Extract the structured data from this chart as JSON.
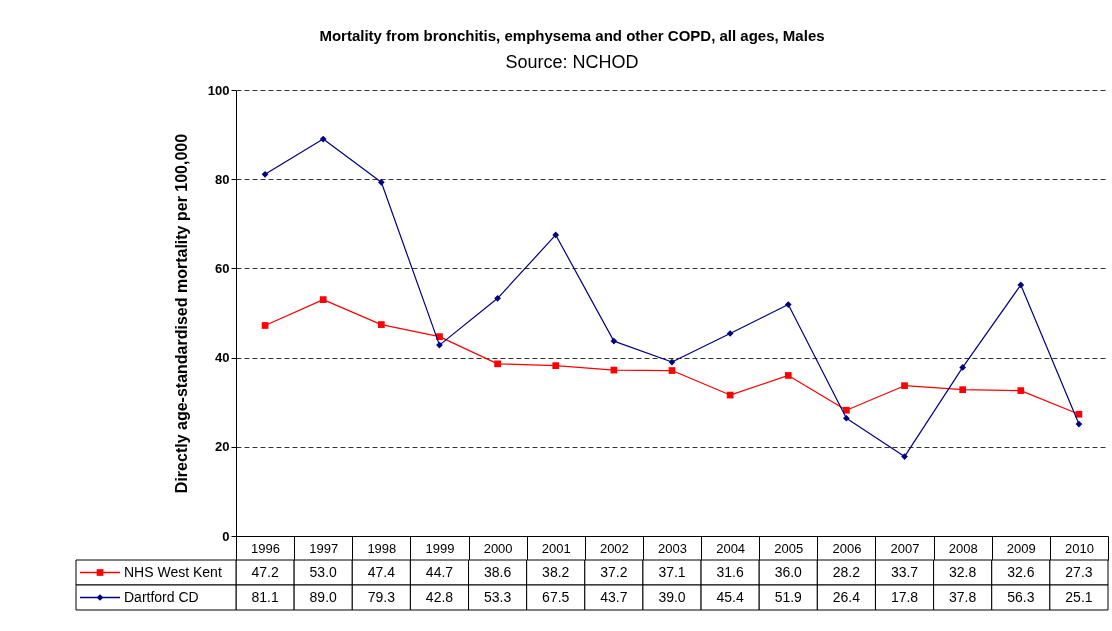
{
  "chart_data": {
    "type": "line",
    "title": "Mortality from bronchitis, emphysema and other COPD, all ages, Males",
    "subtitle": "Source: NCHOD",
    "ylabel": "Directly age-standardised mortality per 100,000",
    "categories": [
      "1996",
      "1997",
      "1998",
      "1999",
      "2000",
      "2001",
      "2002",
      "2003",
      "2004",
      "2005",
      "2006",
      "2007",
      "2008",
      "2009",
      "2010"
    ],
    "series": [
      {
        "name": "NHS West Kent",
        "color": "#ff0000",
        "marker": "square",
        "values": [
          47.2,
          53.0,
          47.4,
          44.7,
          38.6,
          38.2,
          37.2,
          37.1,
          31.6,
          36.0,
          28.2,
          33.7,
          32.8,
          32.6,
          27.3
        ],
        "value_labels": [
          "47.2",
          "53.0",
          "47.4",
          "44.7",
          "38.6",
          "38.2",
          "37.2",
          "37.1",
          "31.6",
          "36.0",
          "28.2",
          "33.7",
          "32.8",
          "32.6",
          "27.3"
        ]
      },
      {
        "name": "Dartford CD",
        "color": "#000080",
        "marker": "diamond",
        "values": [
          81.1,
          89.0,
          79.3,
          42.8,
          53.3,
          67.5,
          43.7,
          39.0,
          45.4,
          51.9,
          26.4,
          17.8,
          37.8,
          56.3,
          25.1
        ],
        "value_labels": [
          "81.1",
          "89.0",
          "79.3",
          "42.8",
          "53.3",
          "67.5",
          "43.7",
          "39.0",
          "45.4",
          "51.9",
          "26.4",
          "17.8",
          "37.8",
          "56.3",
          "25.1"
        ]
      }
    ],
    "ylim": [
      0,
      100
    ],
    "yticks": [
      0,
      20,
      40,
      60,
      80,
      100
    ],
    "grid": "y",
    "legend": "bottom left",
    "line_style": "solid"
  }
}
